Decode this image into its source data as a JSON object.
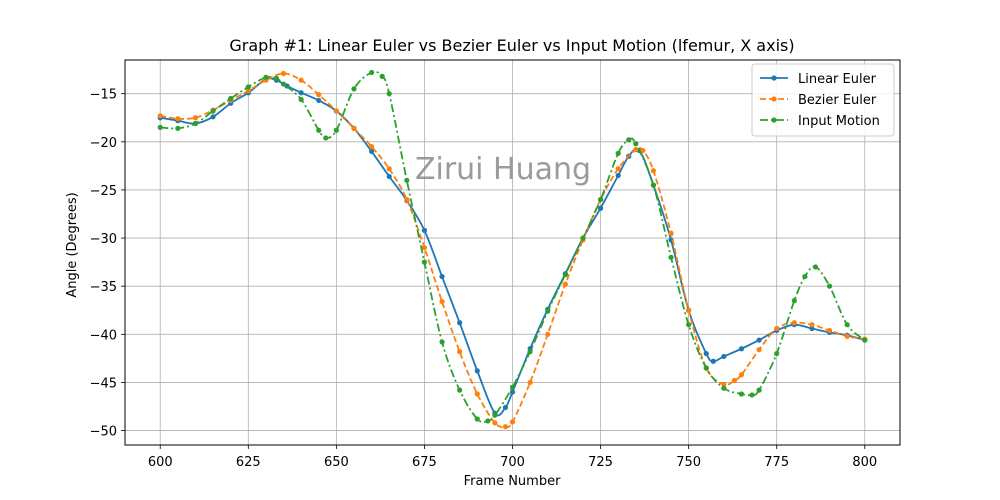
{
  "chart_data": {
    "type": "line",
    "title": "Graph #1: Linear Euler vs Bezier Euler vs Input Motion (lfemur, X axis)",
    "xlabel": "Frame Number",
    "ylabel": "Angle (Degrees)",
    "xlim": [
      590,
      810
    ],
    "ylim": [
      -51.5,
      -11.5
    ],
    "xticks": [
      600,
      625,
      650,
      675,
      700,
      725,
      750,
      775,
      800
    ],
    "yticks": [
      -50,
      -45,
      -40,
      -35,
      -30,
      -25,
      -20,
      -15
    ],
    "grid": true,
    "legend_position": "top-right",
    "watermark": "Zirui Huang",
    "series": [
      {
        "name": "Linear Euler",
        "color": "#1f77b4",
        "line_style": "solid",
        "marker": "circle",
        "x": [
          600,
          605,
          610,
          615,
          620,
          625,
          630,
          633,
          636,
          640,
          645,
          650,
          655,
          660,
          665,
          670,
          675,
          680,
          685,
          690,
          695,
          698,
          700,
          705,
          710,
          715,
          720,
          725,
          730,
          733,
          736,
          740,
          745,
          750,
          755,
          757,
          760,
          765,
          770,
          775,
          780,
          785,
          790,
          795,
          800
        ],
        "y": [
          -17.5,
          -17.8,
          -18.1,
          -17.4,
          -16.0,
          -14.9,
          -13.5,
          -13.6,
          -14.2,
          -14.9,
          -15.7,
          -16.8,
          -18.6,
          -21.0,
          -23.6,
          -26.1,
          -29.2,
          -34.0,
          -38.8,
          -43.8,
          -48.2,
          -47.6,
          -46.0,
          -41.5,
          -37.4,
          -33.7,
          -30.0,
          -26.9,
          -23.5,
          -21.5,
          -20.9,
          -24.5,
          -30.2,
          -37.5,
          -42.0,
          -42.8,
          -42.3,
          -41.5,
          -40.6,
          -39.6,
          -39.0,
          -39.4,
          -39.8,
          -40.1,
          -40.6
        ]
      },
      {
        "name": "Bezier Euler",
        "color": "#ff7f0e",
        "line_style": "dashed",
        "marker": "circle",
        "x": [
          600,
          605,
          610,
          615,
          620,
          625,
          630,
          635,
          640,
          645,
          650,
          655,
          660,
          665,
          670,
          675,
          680,
          685,
          690,
          695,
          698,
          700,
          705,
          710,
          715,
          720,
          725,
          730,
          735,
          737,
          740,
          745,
          750,
          755,
          760,
          763,
          765,
          770,
          775,
          780,
          785,
          790,
          795,
          800
        ],
        "y": [
          -17.3,
          -17.6,
          -17.5,
          -16.7,
          -15.7,
          -14.7,
          -13.6,
          -12.9,
          -13.6,
          -15.1,
          -16.8,
          -18.6,
          -20.5,
          -22.8,
          -26.0,
          -31.0,
          -36.6,
          -41.8,
          -46.2,
          -49.2,
          -49.6,
          -49.1,
          -45.0,
          -40.0,
          -34.8,
          -30.2,
          -26.0,
          -22.8,
          -20.8,
          -20.9,
          -23.0,
          -29.5,
          -37.5,
          -43.5,
          -45.2,
          -44.8,
          -44.2,
          -41.6,
          -39.4,
          -38.8,
          -39.0,
          -39.6,
          -40.2,
          -40.5
        ]
      },
      {
        "name": "Input Motion",
        "color": "#2ca02c",
        "line_style": "dashdot",
        "marker": "circle",
        "x": [
          600,
          605,
          610,
          615,
          620,
          625,
          630,
          633,
          635,
          640,
          645,
          647,
          650,
          655,
          660,
          663,
          665,
          670,
          675,
          680,
          685,
          690,
          693,
          695,
          700,
          705,
          710,
          715,
          720,
          725,
          730,
          733,
          735,
          740,
          745,
          750,
          755,
          760,
          765,
          768,
          770,
          775,
          780,
          783,
          786,
          790,
          795,
          800
        ],
        "y": [
          -18.5,
          -18.6,
          -18.1,
          -16.8,
          -15.5,
          -14.3,
          -13.3,
          -13.4,
          -14.0,
          -15.6,
          -18.8,
          -19.6,
          -18.8,
          -14.5,
          -12.8,
          -13.2,
          -15.0,
          -24.0,
          -32.5,
          -40.8,
          -45.8,
          -48.8,
          -49.0,
          -48.4,
          -45.5,
          -41.8,
          -37.6,
          -33.8,
          -30.0,
          -26.0,
          -21.2,
          -19.8,
          -20.2,
          -24.5,
          -32.0,
          -39.0,
          -43.5,
          -45.6,
          -46.2,
          -46.3,
          -45.8,
          -42.0,
          -36.5,
          -34.0,
          -33.0,
          -35.0,
          -39.0,
          -40.6
        ]
      }
    ]
  }
}
